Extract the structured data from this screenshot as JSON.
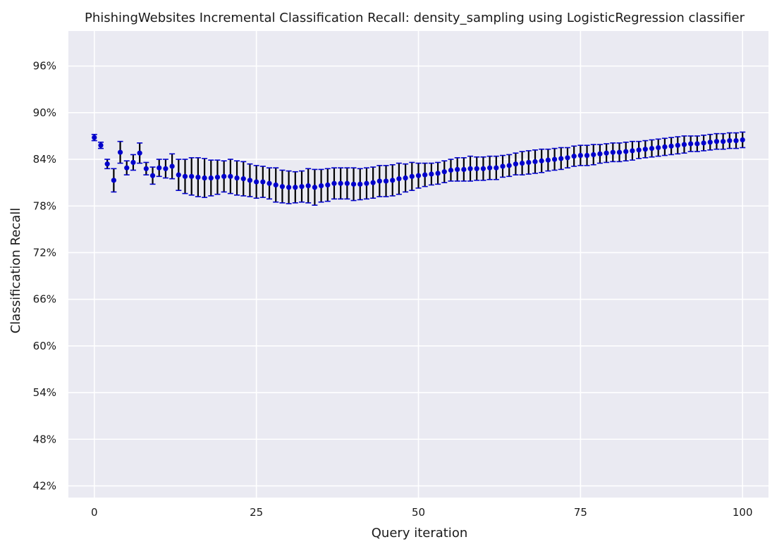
{
  "chart_data": {
    "type": "scatter",
    "title": "PhishingWebsites Incremental Classification Recall: density_sampling using LogisticRegression classifier",
    "xlabel": "Query iteration",
    "ylabel": "Classification Recall",
    "xlim": [
      -4,
      104
    ],
    "ylim": [
      40.5,
      100.5
    ],
    "x_ticks": [
      0,
      25,
      50,
      75,
      100
    ],
    "y_ticks": [
      42,
      48,
      54,
      60,
      66,
      72,
      78,
      84,
      90,
      96
    ],
    "y_tick_labels": [
      "42%",
      "48%",
      "54%",
      "60%",
      "66%",
      "72%",
      "78%",
      "84%",
      "90%",
      "96%"
    ],
    "grid": true,
    "series": [
      {
        "x": [
          0,
          1,
          2,
          3,
          4,
          5,
          6,
          7,
          8,
          9,
          10,
          11,
          12,
          13,
          14,
          15,
          16,
          17,
          18,
          19,
          20,
          21,
          22,
          23,
          24,
          25,
          26,
          27,
          28,
          29,
          30,
          31,
          32,
          33,
          34,
          35,
          36,
          37,
          38,
          39,
          40,
          41,
          42,
          43,
          44,
          45,
          46,
          47,
          48,
          49,
          50,
          51,
          52,
          53,
          54,
          55,
          56,
          57,
          58,
          59,
          60,
          61,
          62,
          63,
          64,
          65,
          66,
          67,
          68,
          69,
          70,
          71,
          72,
          73,
          74,
          75,
          76,
          77,
          78,
          79,
          80,
          81,
          82,
          83,
          84,
          85,
          86,
          87,
          88,
          89,
          90,
          91,
          92,
          93,
          94,
          95,
          96,
          97,
          98,
          99,
          100
        ],
        "y": [
          86.8,
          85.8,
          83.4,
          81.3,
          84.9,
          82.9,
          83.6,
          84.8,
          82.8,
          81.9,
          82.9,
          82.8,
          83.1,
          82.0,
          81.8,
          81.8,
          81.7,
          81.6,
          81.6,
          81.7,
          81.8,
          81.8,
          81.6,
          81.5,
          81.3,
          81.1,
          81.1,
          80.9,
          80.7,
          80.5,
          80.4,
          80.4,
          80.5,
          80.6,
          80.4,
          80.6,
          80.7,
          80.9,
          80.9,
          80.9,
          80.8,
          80.8,
          80.9,
          81.0,
          81.2,
          81.2,
          81.3,
          81.5,
          81.6,
          81.8,
          81.9,
          82.0,
          82.1,
          82.2,
          82.4,
          82.6,
          82.7,
          82.7,
          82.8,
          82.8,
          82.8,
          82.9,
          82.9,
          83.1,
          83.2,
          83.4,
          83.5,
          83.6,
          83.7,
          83.8,
          83.9,
          84.0,
          84.1,
          84.2,
          84.4,
          84.5,
          84.5,
          84.6,
          84.7,
          84.8,
          84.9,
          84.9,
          85.0,
          85.1,
          85.2,
          85.3,
          85.4,
          85.5,
          85.6,
          85.7,
          85.8,
          85.9,
          86.0,
          86.0,
          86.1,
          86.2,
          86.3,
          86.3,
          86.4,
          86.4,
          86.5
        ],
        "err": [
          0.4,
          0.4,
          0.6,
          1.5,
          1.4,
          0.9,
          1.0,
          1.3,
          0.8,
          1.1,
          1.1,
          1.2,
          1.6,
          2.0,
          2.2,
          2.4,
          2.5,
          2.5,
          2.3,
          2.2,
          2.0,
          2.2,
          2.2,
          2.2,
          2.1,
          2.1,
          2.0,
          2.0,
          2.2,
          2.1,
          2.1,
          2.0,
          2.0,
          2.2,
          2.3,
          2.1,
          2.1,
          2.0,
          2.0,
          2.0,
          2.1,
          2.0,
          2.0,
          2.0,
          2.0,
          2.0,
          2.0,
          2.0,
          1.8,
          1.8,
          1.6,
          1.5,
          1.4,
          1.4,
          1.4,
          1.4,
          1.5,
          1.5,
          1.6,
          1.5,
          1.5,
          1.5,
          1.5,
          1.4,
          1.4,
          1.4,
          1.5,
          1.5,
          1.5,
          1.5,
          1.4,
          1.4,
          1.4,
          1.3,
          1.3,
          1.3,
          1.3,
          1.3,
          1.2,
          1.2,
          1.2,
          1.2,
          1.2,
          1.2,
          1.1,
          1.1,
          1.1,
          1.1,
          1.1,
          1.1,
          1.1,
          1.1,
          1.0,
          1.0,
          1.0,
          1.0,
          1.0,
          1.0,
          1.0,
          1.0,
          1.0
        ]
      }
    ],
    "colors": {
      "background": "#eaeaf2",
      "grid": "#ffffff",
      "marker": "#0000cc",
      "errorbar": "#000000",
      "cap": "#0000cc"
    }
  }
}
